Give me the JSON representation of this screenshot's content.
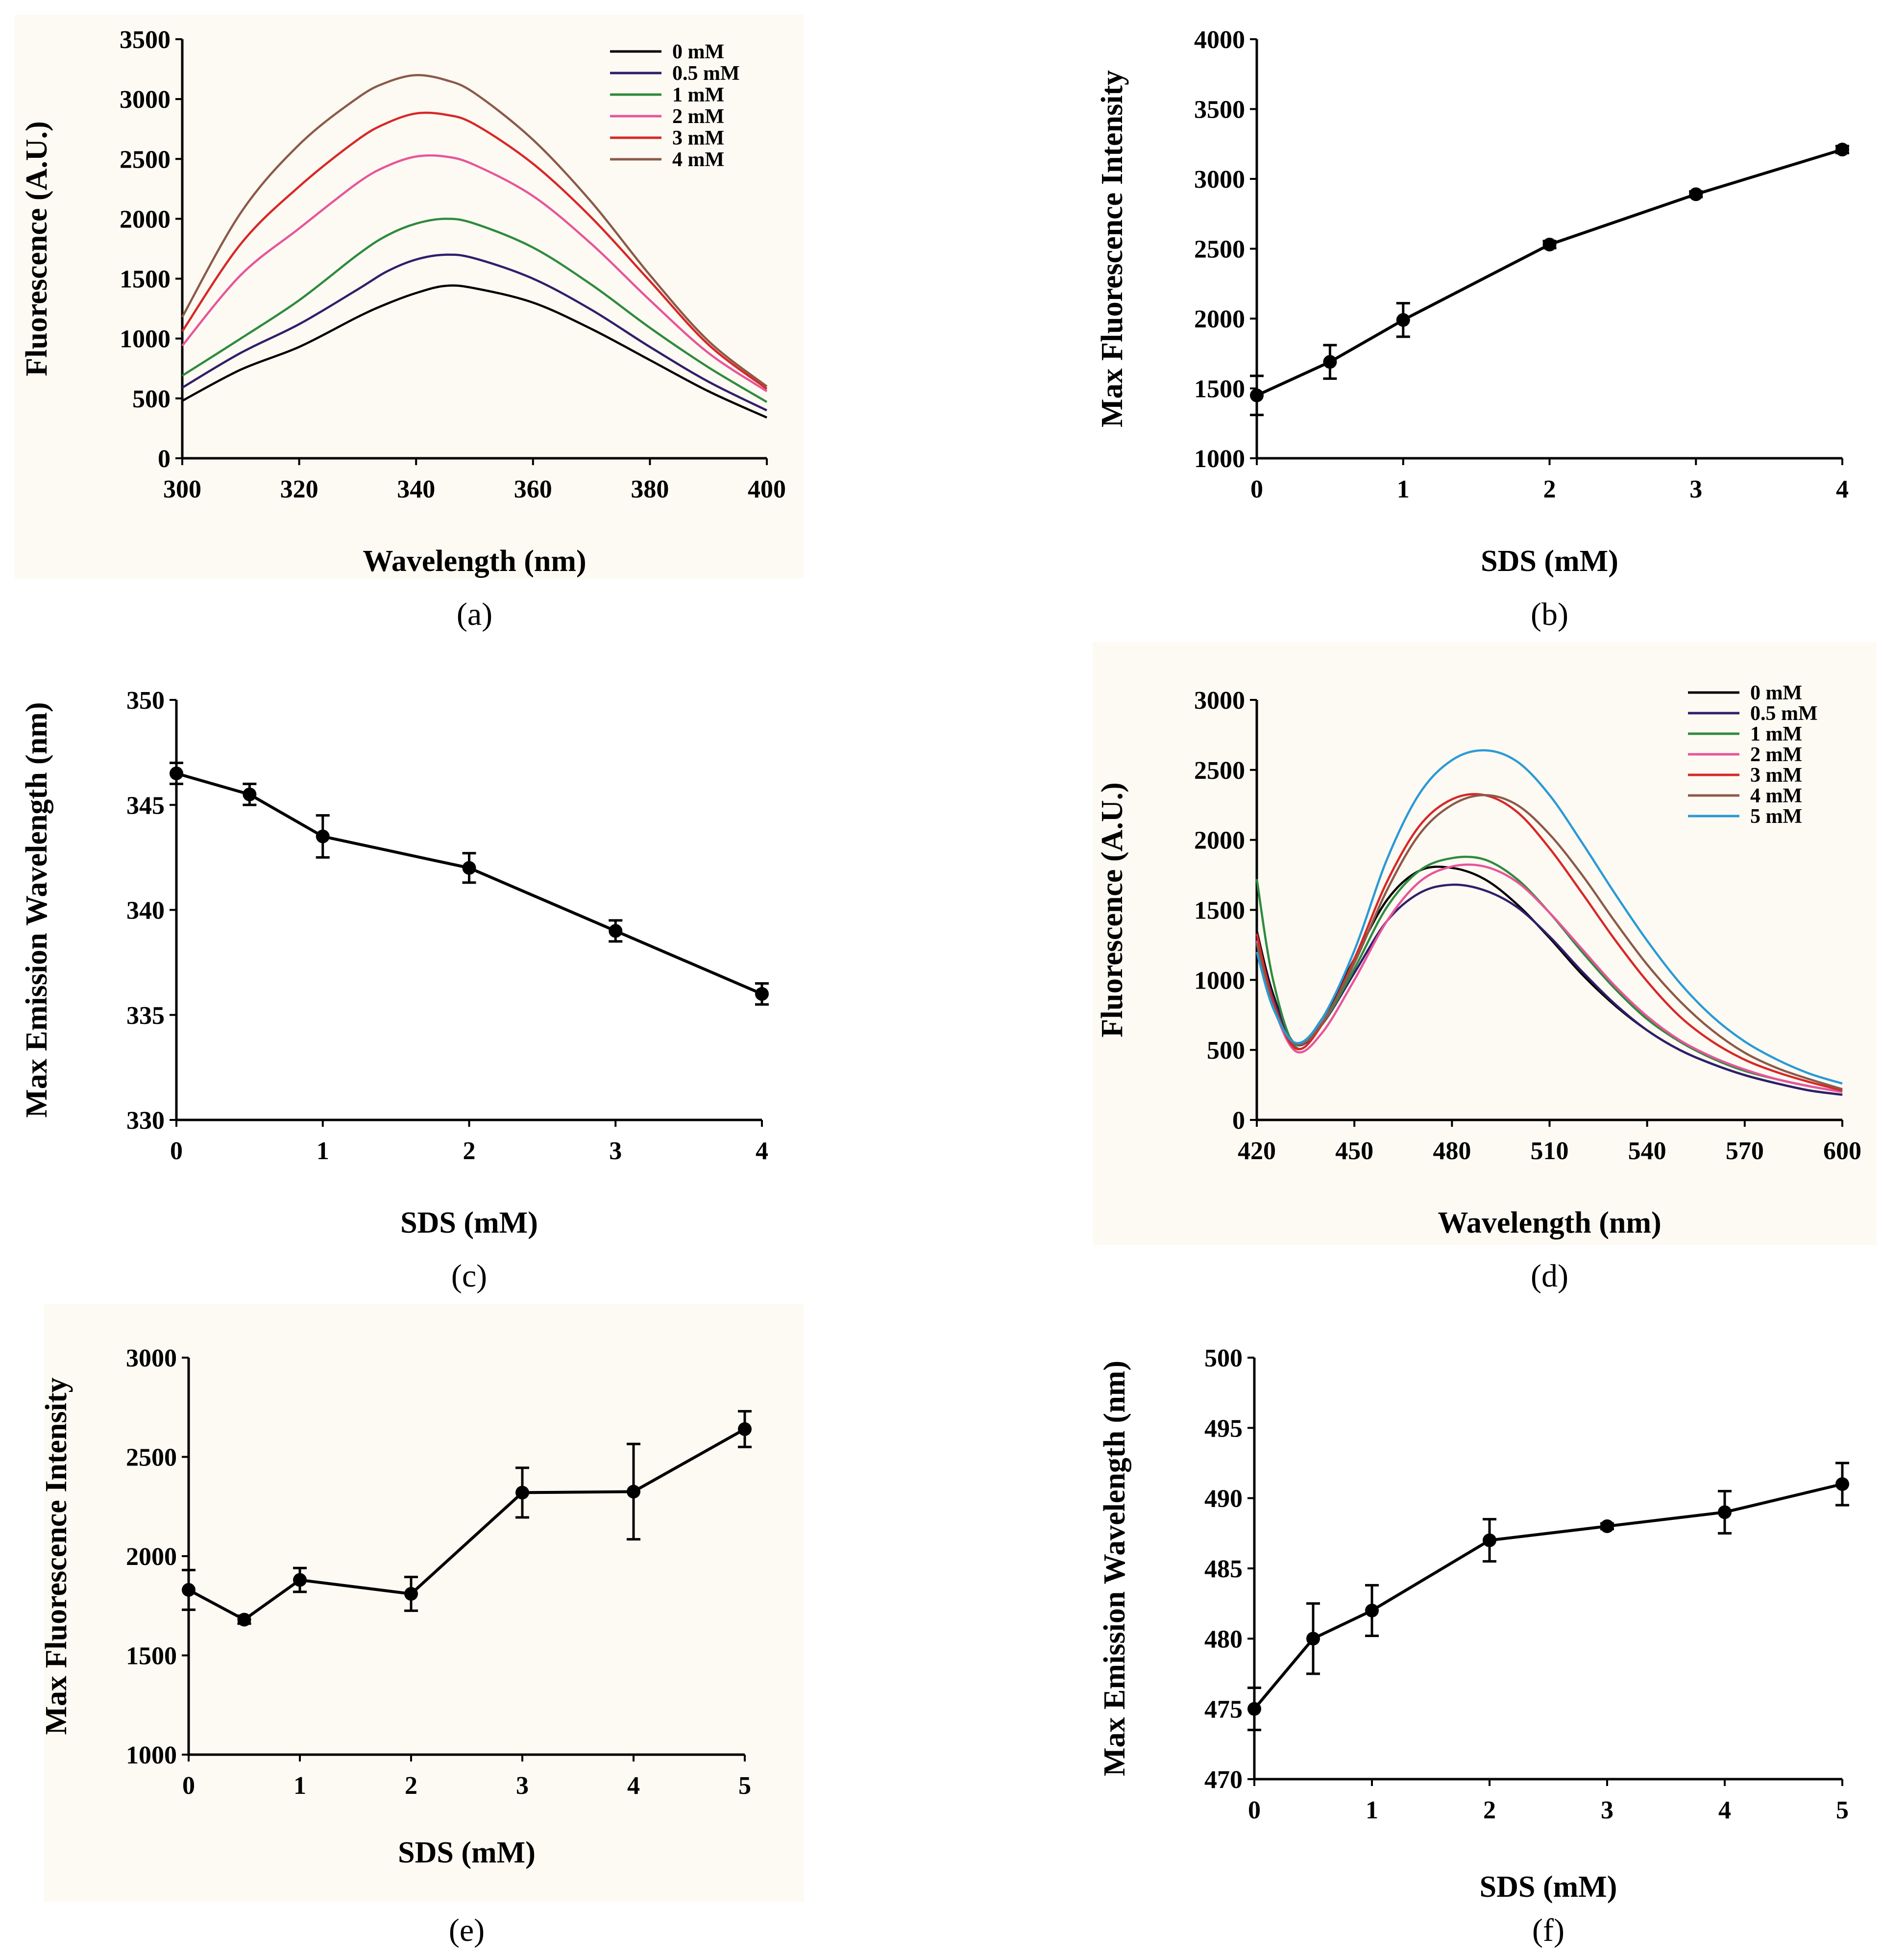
{
  "chart_data": [
    {
      "id": "a",
      "type": "line",
      "panel_label": "(a)",
      "panel_letter": "a",
      "title": "",
      "xlabel": "Wavelength (nm)",
      "ylabel": "Fluorescence (A.U.)",
      "xlim": [
        300,
        400
      ],
      "ylim": [
        0,
        3500
      ],
      "xticks": [
        300,
        320,
        340,
        360,
        380,
        400
      ],
      "yticks": [
        0,
        500,
        1000,
        1500,
        2000,
        2500,
        3000,
        3500
      ],
      "legend_position": "top-right",
      "x": [
        300,
        310,
        320,
        330,
        335,
        340,
        345,
        350,
        360,
        370,
        380,
        390,
        400
      ],
      "series": [
        {
          "name": "0 mM",
          "color": "#000000",
          "values": [
            480,
            740,
            930,
            1180,
            1290,
            1380,
            1440,
            1420,
            1300,
            1080,
            820,
            560,
            340
          ]
        },
        {
          "name": "0.5 mM",
          "color": "#2e1f6b",
          "values": [
            590,
            880,
            1120,
            1410,
            1560,
            1660,
            1700,
            1670,
            1500,
            1240,
            930,
            640,
            400
          ]
        },
        {
          "name": "1 mM",
          "color": "#2e8b3e",
          "values": [
            690,
            1000,
            1320,
            1700,
            1860,
            1960,
            2000,
            1960,
            1760,
            1450,
            1090,
            760,
            470
          ]
        },
        {
          "name": "2 mM",
          "color": "#e8559a",
          "values": [
            940,
            1530,
            1920,
            2300,
            2440,
            2520,
            2520,
            2450,
            2190,
            1790,
            1320,
            880,
            560
          ]
        },
        {
          "name": "3 mM",
          "color": "#d72828",
          "values": [
            1060,
            1790,
            2270,
            2660,
            2800,
            2880,
            2870,
            2790,
            2460,
            2010,
            1480,
            950,
            580
          ]
        },
        {
          "name": "4 mM",
          "color": "#8b5a4a",
          "values": [
            1180,
            2050,
            2620,
            3010,
            3140,
            3200,
            3160,
            3050,
            2660,
            2140,
            1530,
            980,
            600
          ]
        }
      ]
    },
    {
      "id": "b",
      "type": "line",
      "panel_label": "(b)",
      "panel_letter": "b",
      "title": "",
      "xlabel": "SDS (mM)",
      "ylabel": "Max Fluorescence Intensity",
      "xlim": [
        0,
        4
      ],
      "ylim": [
        1000,
        4000
      ],
      "xticks": [
        0,
        1,
        2,
        3,
        4
      ],
      "yticks": [
        1000,
        1500,
        2000,
        2500,
        3000,
        3500,
        4000
      ],
      "x": [
        0,
        0.5,
        1,
        2,
        3,
        4
      ],
      "series": [
        {
          "name": "Max fluorescence",
          "values": [
            1450,
            1690,
            1990,
            2530,
            2890,
            3210
          ],
          "errors": [
            140,
            120,
            120,
            25,
            20,
            25
          ]
        }
      ]
    },
    {
      "id": "c",
      "type": "line",
      "panel_label": "(c)",
      "panel_letter": "c",
      "title": "",
      "xlabel": "SDS (mM)",
      "ylabel": "Max Emission Wavelength (nm)",
      "xlim": [
        0,
        4
      ],
      "ylim": [
        330,
        350
      ],
      "xticks": [
        0,
        1,
        2,
        3,
        4
      ],
      "yticks": [
        330,
        335,
        340,
        345,
        350
      ],
      "x": [
        0,
        0.5,
        1,
        2,
        3,
        4
      ],
      "series": [
        {
          "name": "Max emission wavelength",
          "values": [
            346.5,
            345.5,
            343.5,
            342,
            339,
            336
          ],
          "errors": [
            0.5,
            0.5,
            1,
            0.7,
            0.5,
            0.5
          ]
        }
      ]
    },
    {
      "id": "d",
      "type": "line",
      "panel_label": "(d)",
      "panel_letter": "d",
      "title": "",
      "xlabel": "Wavelength (nm)",
      "ylabel": "Fluorescence (A.U.)",
      "xlim": [
        420,
        600
      ],
      "ylim": [
        0,
        3000
      ],
      "xticks": [
        420,
        450,
        480,
        510,
        540,
        570,
        600
      ],
      "yticks": [
        0,
        500,
        1000,
        1500,
        2000,
        2500,
        3000
      ],
      "legend_position": "top-right",
      "x": [
        420,
        425,
        432,
        440,
        450,
        460,
        470,
        480,
        490,
        500,
        510,
        520,
        530,
        540,
        550,
        560,
        570,
        580,
        590,
        600
      ],
      "series": [
        {
          "name": "0 mM",
          "color": "#000000",
          "values": [
            1350,
            900,
            540,
            720,
            1150,
            1570,
            1780,
            1800,
            1720,
            1540,
            1300,
            1040,
            820,
            640,
            500,
            400,
            320,
            260,
            210,
            180
          ]
        },
        {
          "name": "0.5 mM",
          "color": "#2e1f6b",
          "values": [
            1300,
            880,
            540,
            680,
            1050,
            1420,
            1620,
            1680,
            1640,
            1520,
            1310,
            1060,
            830,
            640,
            500,
            400,
            320,
            260,
            210,
            180
          ]
        },
        {
          "name": "1 mM",
          "color": "#2e8b3e",
          "values": [
            1720,
            1000,
            520,
            680,
            1080,
            1520,
            1780,
            1870,
            1860,
            1720,
            1480,
            1200,
            940,
            720,
            560,
            440,
            350,
            290,
            240,
            200
          ]
        },
        {
          "name": "2 mM",
          "color": "#e8559a",
          "values": [
            1280,
            820,
            490,
            620,
            1000,
            1420,
            1700,
            1810,
            1810,
            1700,
            1480,
            1220,
            960,
            740,
            570,
            450,
            360,
            290,
            240,
            200
          ]
        },
        {
          "name": "3 mM",
          "color": "#d72828",
          "values": [
            1330,
            850,
            510,
            680,
            1150,
            1700,
            2100,
            2290,
            2320,
            2200,
            1940,
            1620,
            1290,
            990,
            740,
            560,
            430,
            340,
            270,
            210
          ]
        },
        {
          "name": "4 mM",
          "color": "#8b5a4a",
          "values": [
            1260,
            820,
            540,
            690,
            1120,
            1640,
            2040,
            2250,
            2320,
            2250,
            2040,
            1750,
            1420,
            1110,
            850,
            640,
            480,
            370,
            290,
            220
          ]
        },
        {
          "name": "5 mM",
          "color": "#2a9ad6",
          "values": [
            1200,
            800,
            550,
            720,
            1210,
            1860,
            2330,
            2570,
            2640,
            2560,
            2320,
            1980,
            1620,
            1280,
            980,
            740,
            560,
            430,
            330,
            260
          ]
        }
      ]
    },
    {
      "id": "e",
      "type": "line",
      "panel_label": "(e)",
      "panel_letter": "e",
      "title": "",
      "xlabel": "SDS (mM)",
      "ylabel": "Max Fluorescence Intensity",
      "xlim": [
        0,
        5
      ],
      "ylim": [
        1000,
        3000
      ],
      "xticks": [
        0,
        1,
        2,
        3,
        4,
        5
      ],
      "yticks": [
        1000,
        1500,
        2000,
        2500,
        3000
      ],
      "x": [
        0,
        0.5,
        1,
        2,
        3,
        4,
        5
      ],
      "series": [
        {
          "name": "Max fluorescence",
          "values": [
            1830,
            1680,
            1880,
            1810,
            2320,
            2325,
            2640
          ],
          "errors": [
            100,
            20,
            60,
            85,
            125,
            240,
            90
          ]
        }
      ]
    },
    {
      "id": "f",
      "type": "line",
      "panel_label": "(f)",
      "panel_letter": "f",
      "title": "",
      "xlabel": "SDS (mM)",
      "ylabel": "Max Emission Wavelength (nm)",
      "xlim": [
        0,
        5
      ],
      "ylim": [
        470,
        500
      ],
      "xticks": [
        0,
        1,
        2,
        3,
        4,
        5
      ],
      "yticks": [
        470,
        475,
        480,
        485,
        490,
        495,
        500
      ],
      "x": [
        0,
        0.5,
        1,
        2,
        3,
        4,
        5
      ],
      "series": [
        {
          "name": "Max emission wavelength",
          "values": [
            475,
            480,
            482,
            487,
            488,
            489,
            491
          ],
          "errors": [
            1.5,
            2.5,
            1.8,
            1.5,
            0.2,
            1.5,
            1.5
          ]
        }
      ]
    }
  ]
}
